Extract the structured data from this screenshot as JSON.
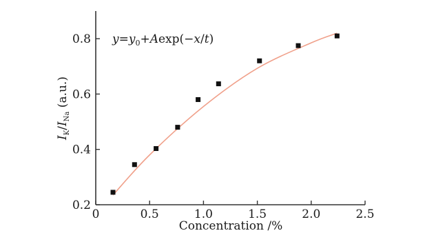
{
  "chart_data": {
    "type": "scatter",
    "xlabel": "Concentration /%",
    "ylabel": {
      "main1": "I",
      "sub1": "K",
      "slash": "/",
      "main2": "I",
      "sub2": "Na",
      "unit": " (a.u.)"
    },
    "xlim": [
      0,
      2.5
    ],
    "ylim": [
      0.2,
      0.9
    ],
    "xticks": [
      0,
      0.5,
      1.0,
      1.5,
      2.0,
      2.5
    ],
    "xtick_labels": [
      "0",
      "0.5",
      "1.0",
      "1.5",
      "2.0",
      "2.5"
    ],
    "yticks": [
      0.2,
      0.4,
      0.6,
      0.8
    ],
    "ytick_labels": [
      "0.2",
      "0.4",
      "0.6",
      "0.8"
    ],
    "grid": false,
    "annotation": {
      "y": "y",
      "eq": "=",
      "y0": "y",
      "y0_sub": "0",
      "plus": "+",
      "A": "A",
      "expo": "exp(−",
      "x": "x",
      "slash": "/",
      "t": "t",
      "close": ")"
    },
    "points": [
      {
        "x": 0.16,
        "y": 0.245
      },
      {
        "x": 0.36,
        "y": 0.345
      },
      {
        "x": 0.56,
        "y": 0.403
      },
      {
        "x": 0.76,
        "y": 0.48
      },
      {
        "x": 0.95,
        "y": 0.58
      },
      {
        "x": 1.14,
        "y": 0.637
      },
      {
        "x": 1.52,
        "y": 0.72
      },
      {
        "x": 1.88,
        "y": 0.775
      },
      {
        "x": 2.24,
        "y": 0.81
      }
    ],
    "fit_curve": [
      {
        "x": 0.16,
        "y": 0.235
      },
      {
        "x": 0.5,
        "y": 0.38
      },
      {
        "x": 1.0,
        "y": 0.555
      },
      {
        "x": 1.5,
        "y": 0.693
      },
      {
        "x": 2.0,
        "y": 0.785
      },
      {
        "x": 2.24,
        "y": 0.82
      }
    ],
    "colors": {
      "points": "#111111",
      "fit": "#f0a08a",
      "axes": "#333333"
    }
  }
}
